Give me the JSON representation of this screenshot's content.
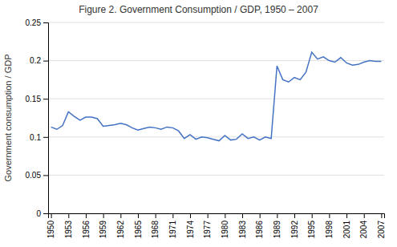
{
  "chart_data": {
    "type": "line",
    "title": "Figure 2. Government Consumption / GDP, 1950 – 2007",
    "ylabel": "Government consumption / GDP",
    "x": [
      1950,
      1951,
      1952,
      1953,
      1954,
      1955,
      1956,
      1957,
      1958,
      1959,
      1960,
      1961,
      1962,
      1963,
      1964,
      1965,
      1966,
      1967,
      1968,
      1969,
      1970,
      1971,
      1972,
      1973,
      1974,
      1975,
      1976,
      1977,
      1978,
      1979,
      1980,
      1981,
      1982,
      1983,
      1984,
      1985,
      1986,
      1987,
      1988,
      1989,
      1990,
      1991,
      1992,
      1993,
      1994,
      1995,
      1996,
      1997,
      1998,
      1999,
      2000,
      2001,
      2002,
      2003,
      2004,
      2005,
      2006,
      2007
    ],
    "values": [
      0.113,
      0.11,
      0.115,
      0.133,
      0.127,
      0.122,
      0.126,
      0.126,
      0.124,
      0.114,
      0.115,
      0.116,
      0.118,
      0.116,
      0.112,
      0.109,
      0.111,
      0.113,
      0.112,
      0.11,
      0.113,
      0.112,
      0.108,
      0.098,
      0.103,
      0.097,
      0.1,
      0.099,
      0.097,
      0.095,
      0.102,
      0.096,
      0.097,
      0.104,
      0.098,
      0.1,
      0.096,
      0.1,
      0.098,
      0.193,
      0.175,
      0.172,
      0.178,
      0.175,
      0.185,
      0.211,
      0.202,
      0.205,
      0.2,
      0.198,
      0.204,
      0.197,
      0.194,
      0.195,
      0.198,
      0.2,
      0.199,
      0.199
    ],
    "color": "#4472C4",
    "xlim": [
      1949.5,
      2007.5
    ],
    "xticks": [
      1950,
      1953,
      1956,
      1959,
      1962,
      1965,
      1968,
      1971,
      1974,
      1977,
      1980,
      1983,
      1986,
      1989,
      1992,
      1995,
      1998,
      2001,
      2004,
      2007
    ],
    "ylim": [
      0,
      0.25
    ],
    "yticks": [
      0,
      0.05,
      0.1,
      0.15,
      0.2,
      0.25
    ],
    "grid": "y"
  }
}
